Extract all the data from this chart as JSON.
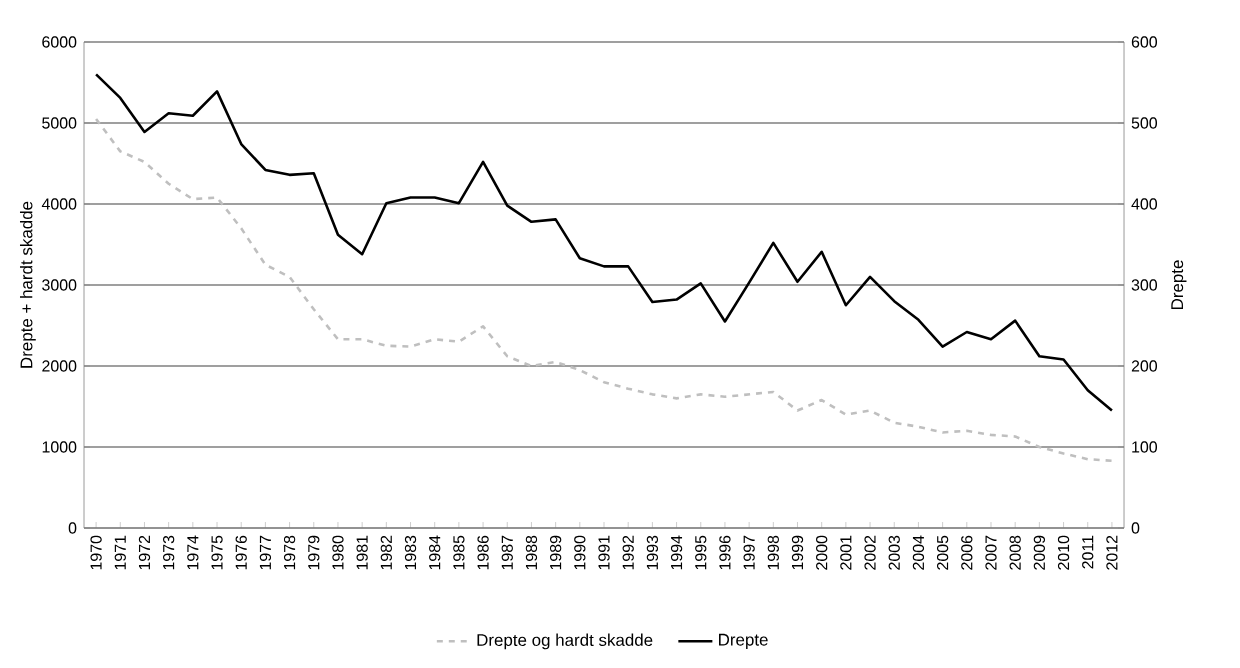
{
  "chart_data": {
    "type": "line",
    "ylabel": "Drepte + hardt skadde",
    "y2label": "Drepte",
    "categories": [
      "1970",
      "1971",
      "1972",
      "1973",
      "1974",
      "1975",
      "1976",
      "1977",
      "1978",
      "1979",
      "1980",
      "1981",
      "1982",
      "1983",
      "1984",
      "1985",
      "1986",
      "1987",
      "1988",
      "1989",
      "1990",
      "1991",
      "1992",
      "1993",
      "1994",
      "1995",
      "1996",
      "1997",
      "1998",
      "1999",
      "2000",
      "2001",
      "2002",
      "2003",
      "2004",
      "2005",
      "2006",
      "2007",
      "2008",
      "2009",
      "2010",
      "2011",
      "2012"
    ],
    "series": [
      {
        "name": "Drepte og hardt skadde",
        "color": "#bfbfbf",
        "line_style": "dashed",
        "values": [
          5050,
          4650,
          4520,
          4250,
          4060,
          4080,
          3700,
          3250,
          3100,
          2700,
          2330,
          2330,
          2250,
          2240,
          2330,
          2300,
          2490,
          2120,
          2000,
          2050,
          1950,
          1800,
          1720,
          1650,
          1600,
          1650,
          1620,
          1650,
          1680,
          1450,
          1580,
          1400,
          1450,
          1300,
          1250,
          1180,
          1200,
          1150,
          1130,
          1000,
          920,
          850,
          830
        ]
      },
      {
        "name": "Drepte",
        "color": "#000000",
        "line_style": "solid",
        "axis": "y2",
        "values": [
          560,
          531,
          489,
          512,
          509,
          539,
          474,
          442,
          436,
          438,
          362,
          338,
          401,
          408,
          408,
          401,
          452,
          398,
          378,
          381,
          333,
          323,
          323,
          279,
          282,
          302,
          255,
          303,
          352,
          304,
          341,
          275,
          310,
          280,
          257,
          224,
          242,
          233,
          256,
          212,
          208,
          170,
          145
        ]
      }
    ],
    "ylim": [
      0,
      6000
    ],
    "yticks": [
      0,
      1000,
      2000,
      3000,
      4000,
      5000,
      6000
    ],
    "y2lim": [
      0,
      600
    ],
    "y2ticks": [
      0,
      100,
      200,
      300,
      400,
      500,
      600
    ],
    "grid": "y",
    "legend": "bottom",
    "marker": "none"
  }
}
